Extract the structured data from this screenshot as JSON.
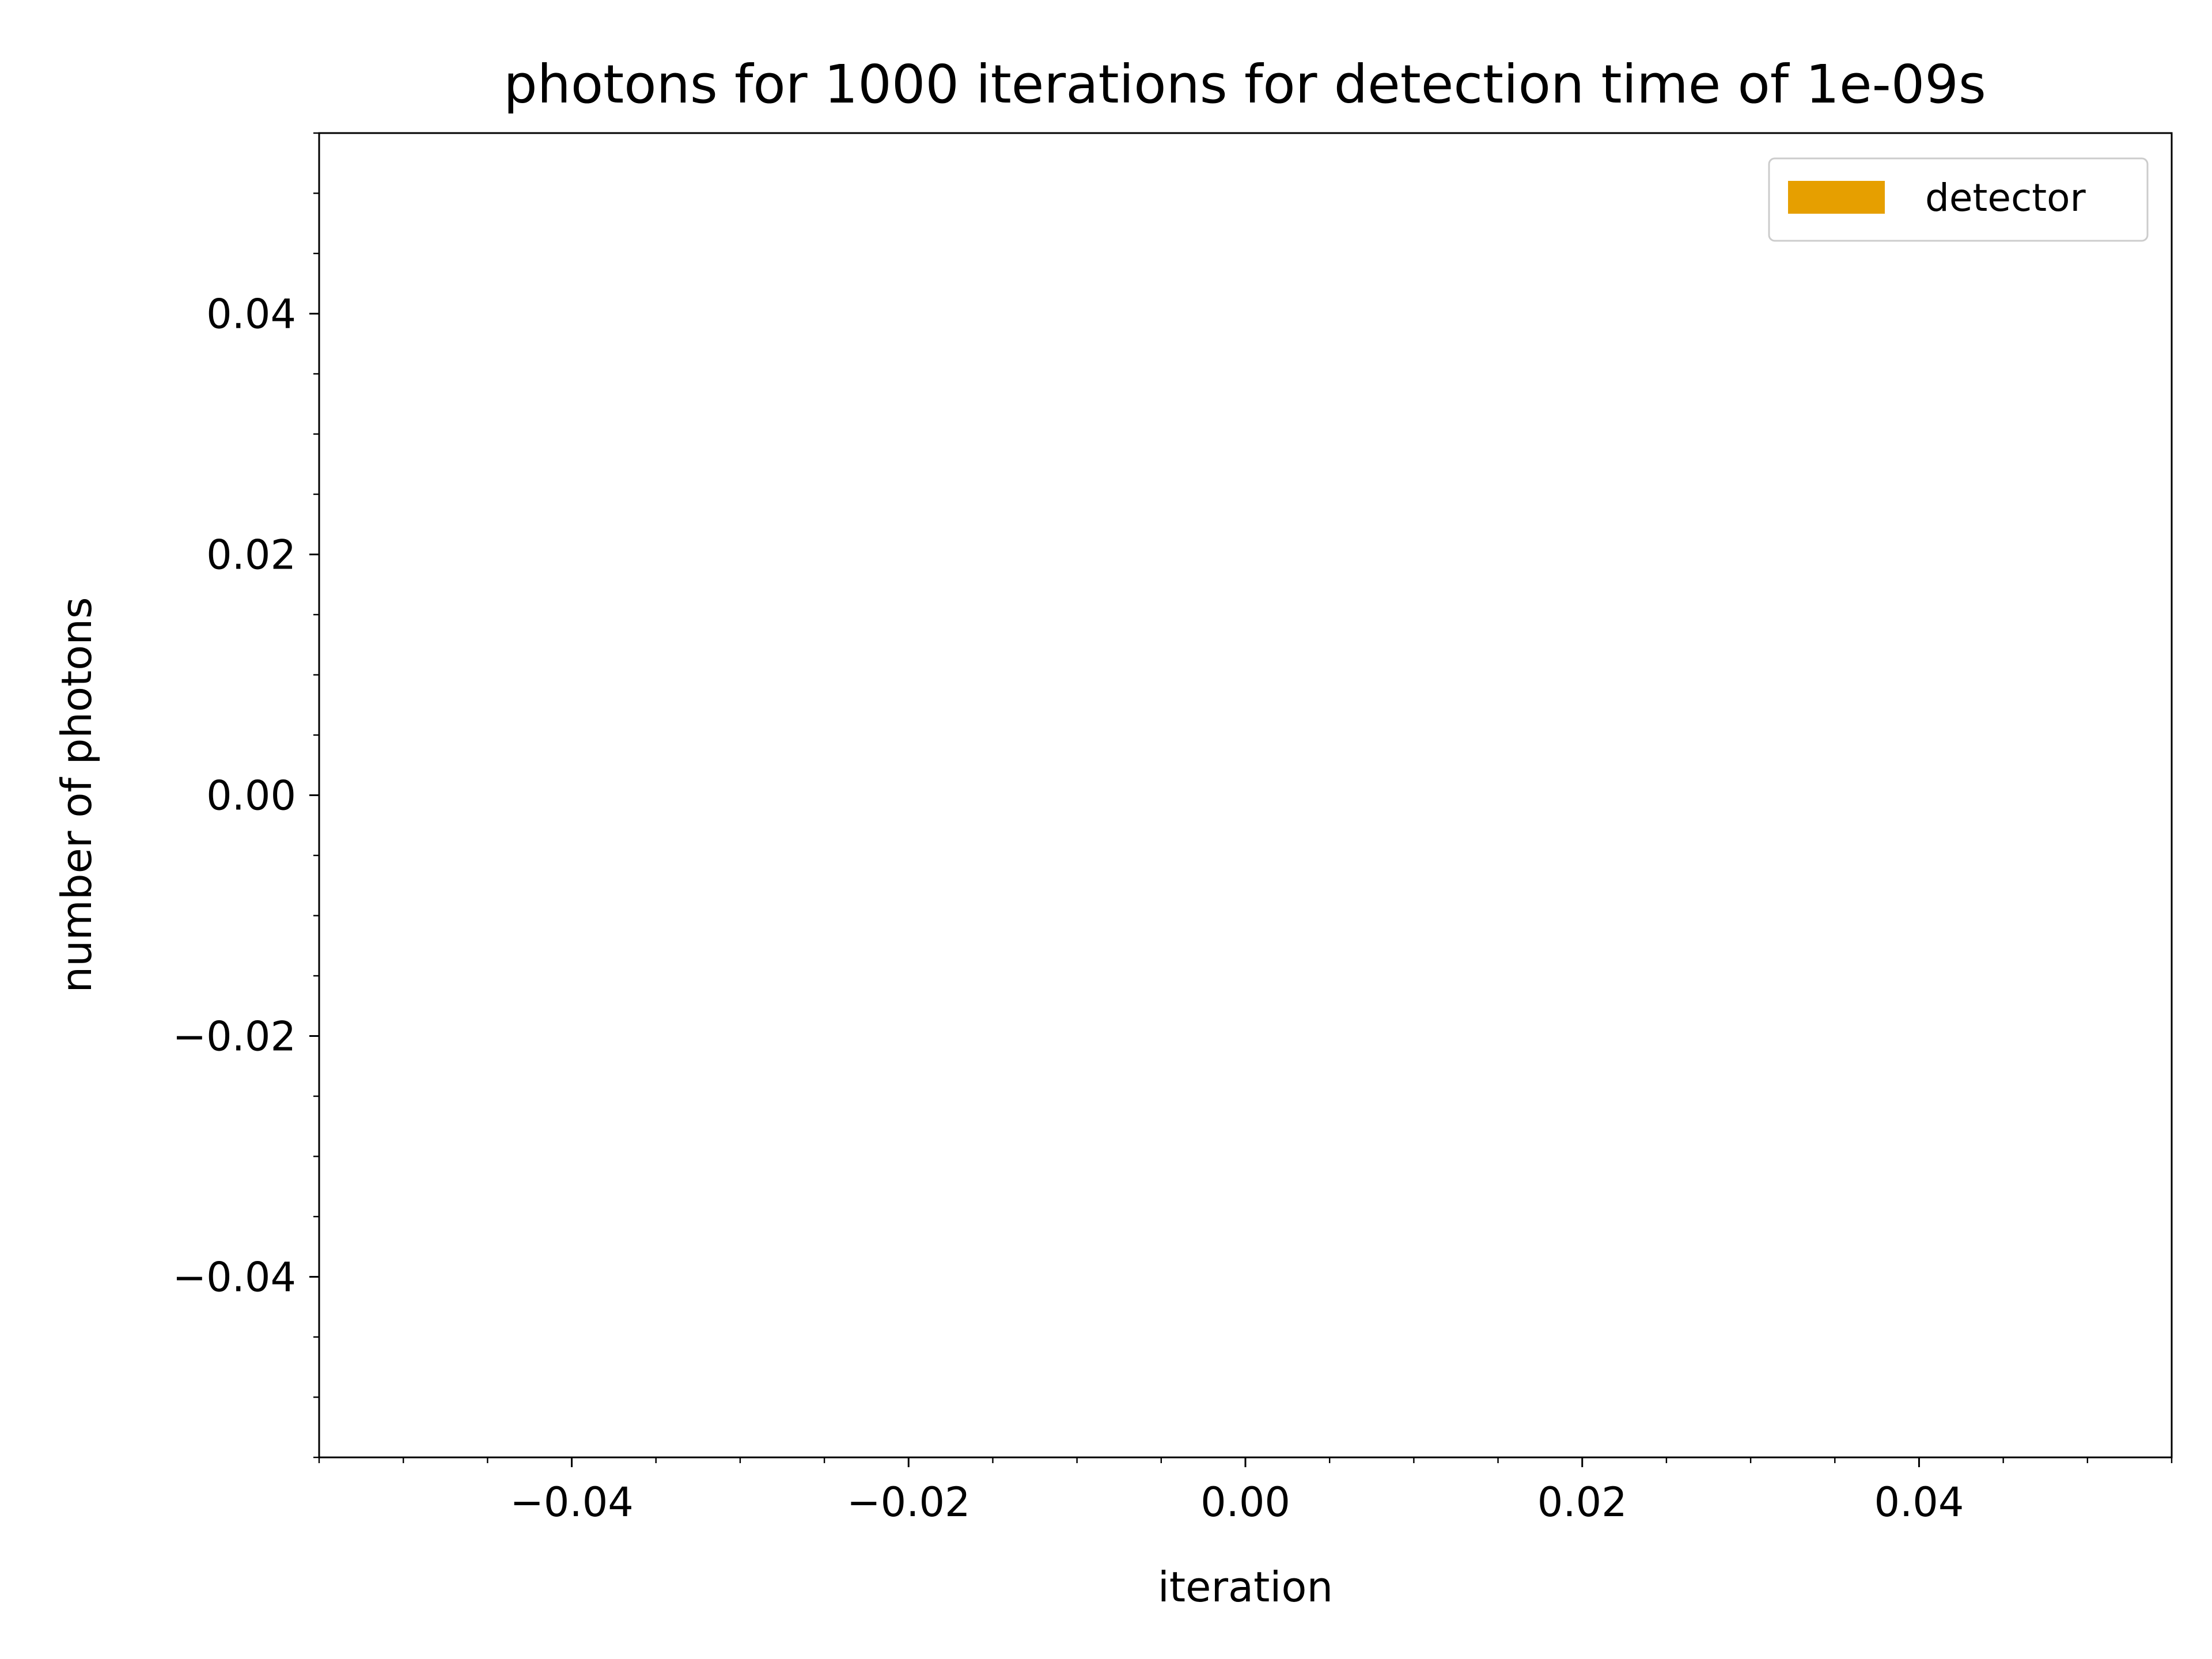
{
  "chart_data": {
    "type": "bar",
    "title": "photons for 1000 iterations for detection time of 1e-09s",
    "xlabel": "iteration",
    "ylabel": "number of photons",
    "xlim": [
      -0.055,
      0.055
    ],
    "ylim": [
      -0.055,
      0.055
    ],
    "x_ticks": [
      -0.04,
      -0.02,
      0.0,
      0.02,
      0.04
    ],
    "x_tick_labels": [
      "−0.04",
      "−0.02",
      "0.00",
      "0.02",
      "0.04"
    ],
    "y_ticks": [
      -0.04,
      -0.02,
      0.0,
      0.02,
      0.04
    ],
    "y_tick_labels": [
      "−0.04",
      "−0.02",
      "0.00",
      "0.02",
      "0.04"
    ],
    "minor_ticks": true,
    "grid": false,
    "legend_position": "top-right",
    "series": [
      {
        "name": "detector",
        "color": "#E69F00",
        "x": [],
        "values": []
      }
    ]
  }
}
